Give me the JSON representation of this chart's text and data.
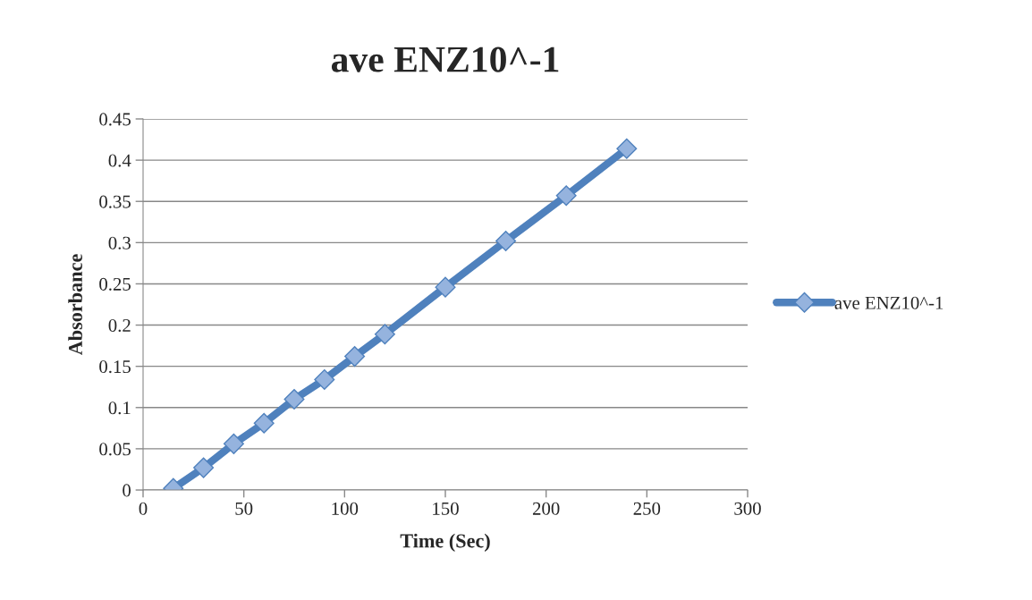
{
  "chart_data": {
    "type": "line",
    "title": "ave ENZ10^-1",
    "xlabel": "Time (Sec)",
    "ylabel": "Absorbance",
    "x": [
      15,
      30,
      45,
      60,
      75,
      90,
      105,
      120,
      150,
      180,
      210,
      240
    ],
    "series": [
      {
        "name": "ave ENZ10^-1",
        "color": "#4f81bd",
        "values": [
          0.002,
          0.027,
          0.056,
          0.081,
          0.11,
          0.134,
          0.162,
          0.189,
          0.246,
          0.302,
          0.357,
          0.414
        ]
      }
    ],
    "xlim": [
      0,
      300
    ],
    "xticks": [
      0,
      50,
      100,
      150,
      200,
      250,
      300
    ],
    "ylim": [
      0,
      0.45
    ],
    "yticks": [
      0,
      0.05,
      0.1,
      0.15,
      0.2,
      0.25,
      0.3,
      0.35,
      0.4,
      0.45
    ],
    "grid": "y",
    "legend": "right",
    "marker": "diamond",
    "line_style": "solid"
  }
}
